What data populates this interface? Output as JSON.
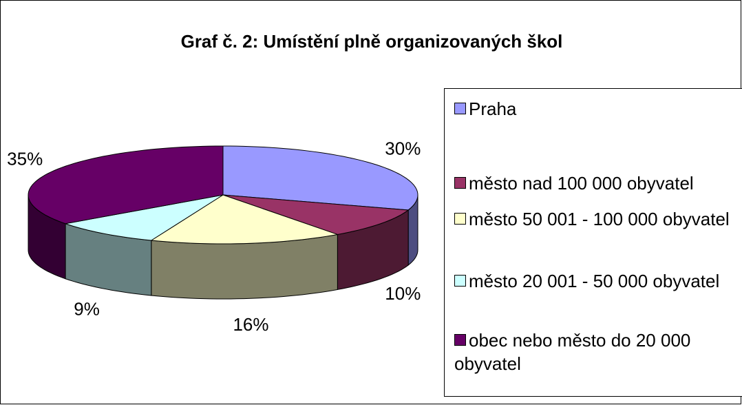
{
  "chart_data": {
    "type": "pie",
    "title": "Graf č. 2: Umístění plně organizovaných škol",
    "categories": [
      "Praha",
      "město nad 100 000 obyvatel",
      "město 50 001 - 100 000 obyvatel",
      "město 20 001 - 50 000 obyvatel",
      "obec nebo město do 20 000 obyvatel"
    ],
    "values": [
      30,
      10,
      16,
      9,
      35
    ],
    "value_labels": [
      "30%",
      "10%",
      "16%",
      "9%",
      "35%"
    ],
    "colors": [
      "#9999ff",
      "#993366",
      "#ffffcc",
      "#ccffff",
      "#660066"
    ],
    "legend": "right"
  }
}
